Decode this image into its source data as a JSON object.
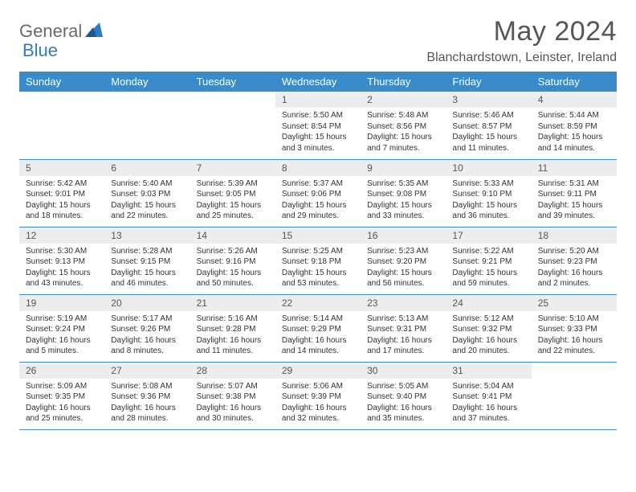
{
  "logo": {
    "word1": "General",
    "word2": "Blue"
  },
  "title": "May 2024",
  "location": "Blanchardstown, Leinster, Ireland",
  "colors": {
    "header_bg": "#3a8bc9",
    "header_text": "#ffffff",
    "daynum_bg": "#ededed",
    "border": "#3a8bc9",
    "logo_gray": "#6a6a6a",
    "logo_blue": "#2f7cc0",
    "title_text": "#565656"
  },
  "weekdays": [
    "Sunday",
    "Monday",
    "Tuesday",
    "Wednesday",
    "Thursday",
    "Friday",
    "Saturday"
  ],
  "weeks": [
    [
      null,
      null,
      null,
      {
        "n": "1",
        "sr": "5:50 AM",
        "ss": "8:54 PM",
        "dl": "15 hours and 3 minutes."
      },
      {
        "n": "2",
        "sr": "5:48 AM",
        "ss": "8:56 PM",
        "dl": "15 hours and 7 minutes."
      },
      {
        "n": "3",
        "sr": "5:46 AM",
        "ss": "8:57 PM",
        "dl": "15 hours and 11 minutes."
      },
      {
        "n": "4",
        "sr": "5:44 AM",
        "ss": "8:59 PM",
        "dl": "15 hours and 14 minutes."
      }
    ],
    [
      {
        "n": "5",
        "sr": "5:42 AM",
        "ss": "9:01 PM",
        "dl": "15 hours and 18 minutes."
      },
      {
        "n": "6",
        "sr": "5:40 AM",
        "ss": "9:03 PM",
        "dl": "15 hours and 22 minutes."
      },
      {
        "n": "7",
        "sr": "5:39 AM",
        "ss": "9:05 PM",
        "dl": "15 hours and 25 minutes."
      },
      {
        "n": "8",
        "sr": "5:37 AM",
        "ss": "9:06 PM",
        "dl": "15 hours and 29 minutes."
      },
      {
        "n": "9",
        "sr": "5:35 AM",
        "ss": "9:08 PM",
        "dl": "15 hours and 33 minutes."
      },
      {
        "n": "10",
        "sr": "5:33 AM",
        "ss": "9:10 PM",
        "dl": "15 hours and 36 minutes."
      },
      {
        "n": "11",
        "sr": "5:31 AM",
        "ss": "9:11 PM",
        "dl": "15 hours and 39 minutes."
      }
    ],
    [
      {
        "n": "12",
        "sr": "5:30 AM",
        "ss": "9:13 PM",
        "dl": "15 hours and 43 minutes."
      },
      {
        "n": "13",
        "sr": "5:28 AM",
        "ss": "9:15 PM",
        "dl": "15 hours and 46 minutes."
      },
      {
        "n": "14",
        "sr": "5:26 AM",
        "ss": "9:16 PM",
        "dl": "15 hours and 50 minutes."
      },
      {
        "n": "15",
        "sr": "5:25 AM",
        "ss": "9:18 PM",
        "dl": "15 hours and 53 minutes."
      },
      {
        "n": "16",
        "sr": "5:23 AM",
        "ss": "9:20 PM",
        "dl": "15 hours and 56 minutes."
      },
      {
        "n": "17",
        "sr": "5:22 AM",
        "ss": "9:21 PM",
        "dl": "15 hours and 59 minutes."
      },
      {
        "n": "18",
        "sr": "5:20 AM",
        "ss": "9:23 PM",
        "dl": "16 hours and 2 minutes."
      }
    ],
    [
      {
        "n": "19",
        "sr": "5:19 AM",
        "ss": "9:24 PM",
        "dl": "16 hours and 5 minutes."
      },
      {
        "n": "20",
        "sr": "5:17 AM",
        "ss": "9:26 PM",
        "dl": "16 hours and 8 minutes."
      },
      {
        "n": "21",
        "sr": "5:16 AM",
        "ss": "9:28 PM",
        "dl": "16 hours and 11 minutes."
      },
      {
        "n": "22",
        "sr": "5:14 AM",
        "ss": "9:29 PM",
        "dl": "16 hours and 14 minutes."
      },
      {
        "n": "23",
        "sr": "5:13 AM",
        "ss": "9:31 PM",
        "dl": "16 hours and 17 minutes."
      },
      {
        "n": "24",
        "sr": "5:12 AM",
        "ss": "9:32 PM",
        "dl": "16 hours and 20 minutes."
      },
      {
        "n": "25",
        "sr": "5:10 AM",
        "ss": "9:33 PM",
        "dl": "16 hours and 22 minutes."
      }
    ],
    [
      {
        "n": "26",
        "sr": "5:09 AM",
        "ss": "9:35 PM",
        "dl": "16 hours and 25 minutes."
      },
      {
        "n": "27",
        "sr": "5:08 AM",
        "ss": "9:36 PM",
        "dl": "16 hours and 28 minutes."
      },
      {
        "n": "28",
        "sr": "5:07 AM",
        "ss": "9:38 PM",
        "dl": "16 hours and 30 minutes."
      },
      {
        "n": "29",
        "sr": "5:06 AM",
        "ss": "9:39 PM",
        "dl": "16 hours and 32 minutes."
      },
      {
        "n": "30",
        "sr": "5:05 AM",
        "ss": "9:40 PM",
        "dl": "16 hours and 35 minutes."
      },
      {
        "n": "31",
        "sr": "5:04 AM",
        "ss": "9:41 PM",
        "dl": "16 hours and 37 minutes."
      },
      null
    ]
  ],
  "labels": {
    "sunrise": "Sunrise:",
    "sunset": "Sunset:",
    "daylight": "Daylight:"
  }
}
